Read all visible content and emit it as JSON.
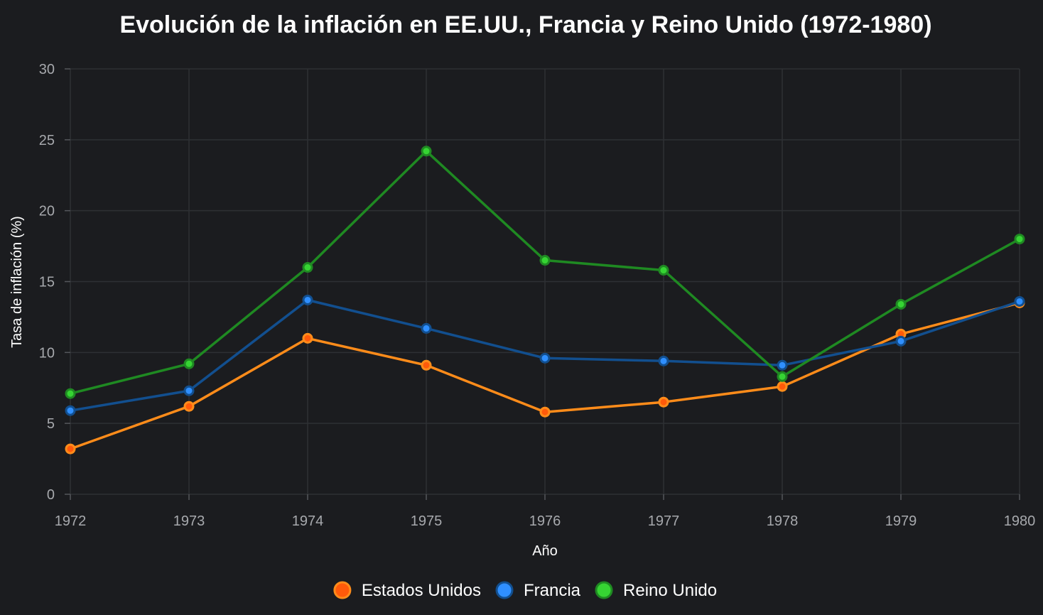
{
  "chart_data": {
    "type": "line",
    "title": "Evolución de la inflación en EE.UU., Francia y Reino Unido (1972-1980)",
    "xlabel": "Año",
    "ylabel": "Tasa de inflación (%)",
    "x": [
      1972,
      1973,
      1974,
      1975,
      1976,
      1977,
      1978,
      1979,
      1980
    ],
    "x_tick_labels": [
      "1972",
      "1973",
      "1974",
      "1975",
      "1976",
      "1977",
      "1978",
      "1979",
      "1980"
    ],
    "ylim": [
      0,
      30
    ],
    "y_ticks": [
      0,
      5,
      10,
      15,
      20,
      25,
      30
    ],
    "y_tick_labels": [
      "0",
      "5",
      "10",
      "15",
      "20",
      "25",
      "30"
    ],
    "grid": true,
    "legend_position": "bottom-center",
    "series": [
      {
        "name": "Estados Unidos",
        "values": [
          3.2,
          6.2,
          11.0,
          9.1,
          5.8,
          6.5,
          7.6,
          11.3,
          13.5
        ],
        "line_color": "#ff8c1a",
        "marker_color": "#ff5a0a"
      },
      {
        "name": "Francia",
        "values": [
          5.9,
          7.3,
          13.7,
          11.7,
          9.6,
          9.4,
          9.1,
          10.8,
          13.6
        ],
        "line_color": "#124f8f",
        "marker_color": "#2f8fff"
      },
      {
        "name": "Reino Unido",
        "values": [
          7.1,
          9.2,
          16.0,
          24.2,
          16.5,
          15.8,
          8.3,
          13.4,
          18.0
        ],
        "line_color": "#1f8a22",
        "marker_color": "#36d433"
      }
    ]
  }
}
